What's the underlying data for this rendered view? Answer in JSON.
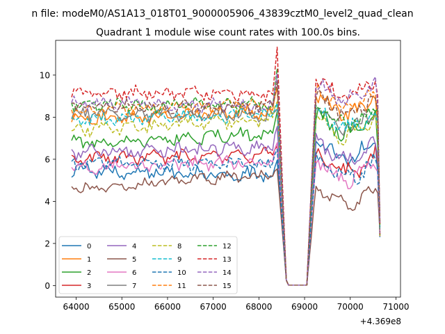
{
  "figure": {
    "suptitle": "n file: modeM0/AS1A13_018T01_9000005906_43839cztM0_level2_quad_clean",
    "offset_label": "+4.369e8"
  },
  "chart_data": {
    "type": "line",
    "title": "Quadrant 1 module wise count rates with 100.0s bins.",
    "xlabel": "",
    "ylabel": "",
    "x_offset": 436900000,
    "xlim": [
      63550,
      71100
    ],
    "ylim": [
      -0.55,
      11.65
    ],
    "x_ticks": [
      64000,
      65000,
      66000,
      67000,
      68000,
      69000,
      70000,
      71000
    ],
    "x_tick_labels": [
      "64000",
      "65000",
      "66000",
      "67000",
      "68000",
      "69000",
      "70000",
      "71000"
    ],
    "y_ticks": [
      0,
      2,
      4,
      6,
      8,
      10
    ],
    "y_tick_labels": [
      "0",
      "2",
      "4",
      "6",
      "8",
      "10"
    ],
    "grid": false,
    "legend": {
      "placement": "lower-left",
      "ncol": 4
    },
    "series": [
      {
        "name": "0",
        "color": "#1f77b4",
        "dash": "solid",
        "base": 5.5,
        "amp": 0.25,
        "trend": -0.25,
        "peak": 6.0,
        "p2": 7.0
      },
      {
        "name": "1",
        "color": "#ff7f0e",
        "dash": "solid",
        "base": 7.9,
        "amp": 0.25,
        "trend": 0.4,
        "peak": 9.5,
        "p2": 9.1
      },
      {
        "name": "2",
        "color": "#2ca02c",
        "dash": "solid",
        "base": 6.8,
        "amp": 0.25,
        "trend": 0.4,
        "peak": 8.4,
        "p2": 8.2
      },
      {
        "name": "3",
        "color": "#d62728",
        "dash": "solid",
        "base": 6.0,
        "amp": 0.25,
        "trend": 0.2,
        "peak": 6.8,
        "p2": 6.3
      },
      {
        "name": "4",
        "color": "#9467bd",
        "dash": "solid",
        "base": 6.3,
        "amp": 0.25,
        "trend": 0.3,
        "peak": 7.7,
        "p2": 6.9
      },
      {
        "name": "5",
        "color": "#8c564b",
        "dash": "solid",
        "base": 4.6,
        "amp": 0.2,
        "trend": 0.7,
        "peak": 5.6,
        "p2": 4.8
      },
      {
        "name": "6",
        "color": "#e377c2",
        "dash": "solid",
        "base": 5.6,
        "amp": 0.25,
        "trend": 0.3,
        "peak": 6.8,
        "p2": 6.0
      },
      {
        "name": "7",
        "color": "#7f7f7f",
        "dash": "solid",
        "base": 8.2,
        "amp": 0.25,
        "trend": -0.1,
        "peak": 8.4,
        "p2": 8.4
      },
      {
        "name": "8",
        "color": "#bcbd22",
        "dash": "dashed",
        "base": 7.4,
        "amp": 0.25,
        "trend": 0.5,
        "peak": 8.8,
        "p2": 8.0
      },
      {
        "name": "9",
        "color": "#17becf",
        "dash": "dashed",
        "base": 7.9,
        "amp": 0.25,
        "trend": 0.2,
        "peak": 8.8,
        "p2": 8.4
      },
      {
        "name": "10",
        "color": "#1f77b4",
        "dash": "dashed",
        "base": 5.8,
        "amp": 0.25,
        "trend": 0.0,
        "peak": 6.6,
        "p2": 6.1
      },
      {
        "name": "11",
        "color": "#ff7f0e",
        "dash": "dashed",
        "base": 8.3,
        "amp": 0.25,
        "trend": 0.3,
        "peak": 9.5,
        "p2": 9.4
      },
      {
        "name": "12",
        "color": "#2ca02c",
        "dash": "dashed",
        "base": 8.6,
        "amp": 0.25,
        "trend": 0.0,
        "peak": 10.2,
        "p2": 8.6
      },
      {
        "name": "13",
        "color": "#d62728",
        "dash": "dashed",
        "base": 9.2,
        "amp": 0.25,
        "trend": -0.1,
        "peak": 11.2,
        "p2": 9.9
      },
      {
        "name": "14",
        "color": "#9467bd",
        "dash": "dashed",
        "base": 8.7,
        "amp": 0.25,
        "trend": -0.2,
        "peak": 10.0,
        "p2": 9.8
      },
      {
        "name": "15",
        "color": "#8c564b",
        "dash": "dashed",
        "base": 8.5,
        "amp": 0.25,
        "trend": 0.0,
        "peak": 9.7,
        "p2": 9.1
      }
    ]
  }
}
